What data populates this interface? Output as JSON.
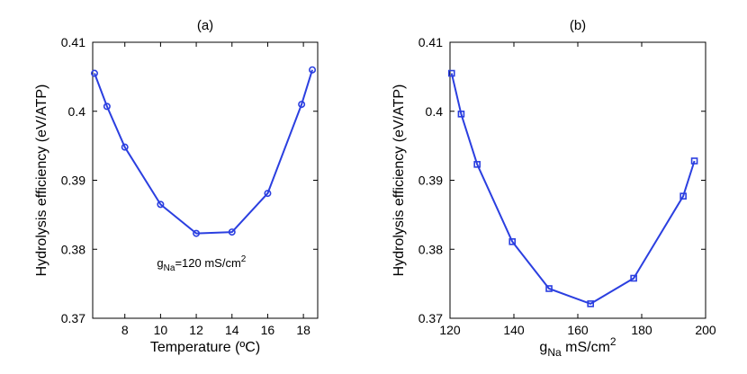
{
  "chart_data": [
    {
      "type": "line",
      "title": "(a)",
      "xlabel": "Temperature (ºC)",
      "ylabel": "Hydrolysis efficiency (eV/ATP)",
      "xlim": [
        6.2,
        18.8
      ],
      "ylim": [
        0.37,
        0.41
      ],
      "xticks": [
        8,
        10,
        12,
        14,
        16,
        18
      ],
      "yticks": [
        0.37,
        0.38,
        0.39,
        0.4,
        0.41
      ],
      "ytick_labels": [
        "0.37",
        "0.38",
        "0.39",
        "0.4",
        "0.41"
      ],
      "marker": "circle",
      "color": "#2b3fe0",
      "annotation": {
        "prefix": "g",
        "sub": "Na",
        "text": "=120 mS/cm",
        "sup": "2"
      },
      "series": [
        {
          "name": "efficiency",
          "x": [
            6.3,
            7.0,
            8.0,
            10.0,
            12.0,
            14.0,
            16.0,
            17.9,
            18.5
          ],
          "y": [
            0.4055,
            0.4007,
            0.3948,
            0.3865,
            0.3823,
            0.3825,
            0.3881,
            0.401,
            0.406
          ]
        }
      ]
    },
    {
      "type": "line",
      "title": "(b)",
      "xlabel": {
        "prefix": "g",
        "sub": "Na",
        "text": " mS/cm",
        "sup": "2"
      },
      "ylabel": "Hydrolysis efficiency (eV/ATP)",
      "xlim": [
        120,
        200
      ],
      "ylim": [
        0.37,
        0.41
      ],
      "xticks": [
        120,
        140,
        160,
        180,
        200
      ],
      "yticks": [
        0.37,
        0.38,
        0.39,
        0.4,
        0.41
      ],
      "ytick_labels": [
        "0.37",
        "0.38",
        "0.39",
        "0.4",
        "0.41"
      ],
      "marker": "square",
      "color": "#2b3fe0",
      "series": [
        {
          "name": "efficiency",
          "x": [
            120.5,
            123.5,
            128.5,
            139.5,
            151,
            164,
            177.5,
            193,
            196.5
          ],
          "y": [
            0.4055,
            0.3996,
            0.3923,
            0.3811,
            0.3743,
            0.3721,
            0.3758,
            0.3877,
            0.3928
          ]
        }
      ]
    }
  ]
}
